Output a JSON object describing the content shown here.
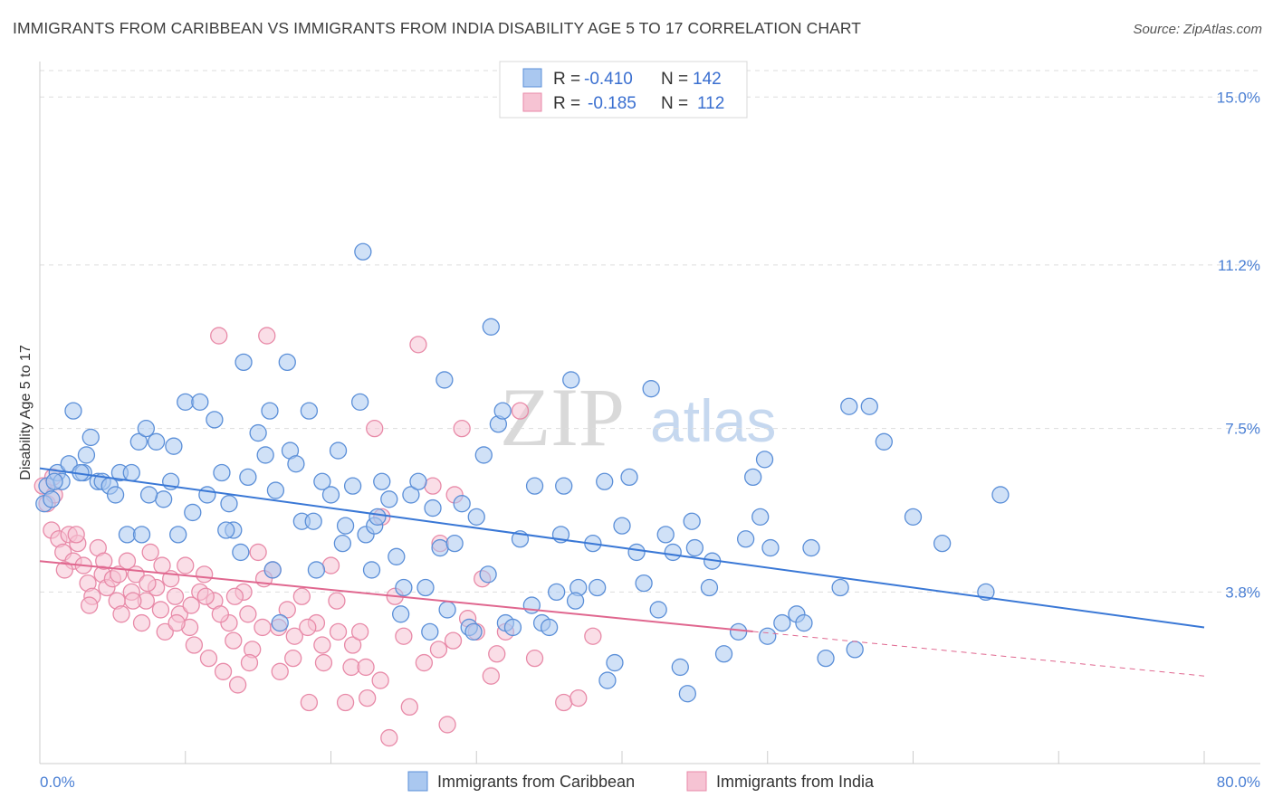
{
  "title": "IMMIGRANTS FROM CARIBBEAN VS IMMIGRANTS FROM INDIA DISABILITY AGE 5 TO 17 CORRELATION CHART",
  "source": "Source: ZipAtlas.com",
  "watermark": {
    "zip": "ZIP",
    "atlas": "atlas"
  },
  "colors": {
    "caribbean_fill": "#aac8f0",
    "caribbean_stroke": "#5b8fd8",
    "caribbean_line": "#3a78d6",
    "india_fill": "#f6c3d3",
    "india_stroke": "#e88aa8",
    "india_line": "#e0678f",
    "axis_text": "#4a7fd4",
    "grid": "#dddddd"
  },
  "legend": {
    "rows": [
      {
        "r_label": "R =",
        "r_value": "-0.410",
        "n_label": "N =",
        "n_value": "142",
        "color": "caribbean"
      },
      {
        "r_label": "R =",
        "r_value": "-0.185",
        "n_label": "N =",
        "n_value": "112",
        "color": "india"
      }
    ]
  },
  "chart_data": {
    "type": "scatter",
    "title": "IMMIGRANTS FROM CARIBBEAN VS IMMIGRANTS FROM INDIA DISABILITY AGE 5 TO 17 CORRELATION CHART",
    "xlabel": "",
    "ylabel": "Disability Age 5 to 17",
    "xlim": [
      0,
      80
    ],
    "ylim": [
      0,
      15.6
    ],
    "x_tick_labels": [
      "0.0%",
      "80.0%"
    ],
    "y_ticks": [
      3.8,
      7.5,
      11.2,
      15.0
    ],
    "y_tick_labels": [
      "3.8%",
      "7.5%",
      "11.2%",
      "15.0%"
    ],
    "grid": true,
    "legend_position": "top-center",
    "series": [
      {
        "name": "Immigrants from Caribbean",
        "R": -0.41,
        "N": 142,
        "trend": {
          "x": [
            0,
            80
          ],
          "y": [
            6.6,
            3.0
          ]
        },
        "points": [
          [
            0.3,
            5.8
          ],
          [
            0.5,
            6.2
          ],
          [
            0.8,
            5.9
          ],
          [
            1.2,
            6.5
          ],
          [
            1.5,
            6.3
          ],
          [
            2.0,
            6.7
          ],
          [
            2.3,
            7.9
          ],
          [
            3.0,
            6.5
          ],
          [
            3.2,
            6.9
          ],
          [
            3.5,
            7.3
          ],
          [
            4.0,
            6.3
          ],
          [
            4.3,
            6.3
          ],
          [
            4.8,
            6.2
          ],
          [
            5.2,
            6.0
          ],
          [
            5.5,
            6.5
          ],
          [
            6.0,
            5.1
          ],
          [
            6.3,
            6.5
          ],
          [
            6.8,
            7.2
          ],
          [
            7.0,
            5.1
          ],
          [
            7.3,
            7.5
          ],
          [
            8.0,
            7.2
          ],
          [
            8.5,
            5.9
          ],
          [
            9.0,
            6.3
          ],
          [
            9.5,
            5.1
          ],
          [
            10.0,
            8.1
          ],
          [
            10.5,
            5.6
          ],
          [
            11.0,
            8.1
          ],
          [
            11.5,
            6.0
          ],
          [
            12.0,
            7.7
          ],
          [
            12.5,
            6.5
          ],
          [
            13.0,
            5.8
          ],
          [
            13.3,
            5.2
          ],
          [
            13.8,
            4.7
          ],
          [
            14.0,
            9.0
          ],
          [
            14.3,
            6.4
          ],
          [
            15.0,
            7.4
          ],
          [
            15.5,
            6.9
          ],
          [
            15.8,
            7.9
          ],
          [
            16.0,
            4.3
          ],
          [
            16.5,
            3.1
          ],
          [
            17.0,
            9.0
          ],
          [
            17.2,
            7.0
          ],
          [
            17.6,
            6.7
          ],
          [
            18.0,
            5.4
          ],
          [
            18.5,
            7.9
          ],
          [
            19.0,
            4.3
          ],
          [
            19.4,
            6.3
          ],
          [
            20.0,
            6.0
          ],
          [
            20.5,
            7.0
          ],
          [
            21.0,
            5.3
          ],
          [
            21.5,
            6.2
          ],
          [
            22.0,
            8.1
          ],
          [
            22.4,
            5.1
          ],
          [
            23.0,
            5.3
          ],
          [
            23.5,
            6.3
          ],
          [
            24.0,
            5.9
          ],
          [
            24.5,
            4.6
          ],
          [
            25.0,
            3.9
          ],
          [
            25.5,
            6.0
          ],
          [
            26.0,
            6.3
          ],
          [
            26.5,
            3.9
          ],
          [
            27.0,
            5.7
          ],
          [
            27.5,
            4.8
          ],
          [
            28.0,
            3.4
          ],
          [
            28.5,
            4.9
          ],
          [
            29.0,
            5.8
          ],
          [
            29.5,
            3.0
          ],
          [
            30.0,
            5.5
          ],
          [
            30.5,
            6.9
          ],
          [
            31.0,
            9.8
          ],
          [
            31.5,
            7.6
          ],
          [
            32.0,
            3.1
          ],
          [
            32.5,
            3.0
          ],
          [
            33.0,
            5.0
          ],
          [
            34.0,
            6.2
          ],
          [
            34.5,
            3.1
          ],
          [
            35.0,
            3.0
          ],
          [
            35.5,
            3.8
          ],
          [
            36.0,
            6.2
          ],
          [
            36.5,
            8.6
          ],
          [
            37.0,
            3.9
          ],
          [
            38.0,
            4.9
          ],
          [
            39.0,
            1.8
          ],
          [
            40.0,
            5.3
          ],
          [
            41.0,
            4.7
          ],
          [
            41.5,
            4.0
          ],
          [
            42.5,
            3.4
          ],
          [
            43.0,
            5.1
          ],
          [
            43.5,
            4.7
          ],
          [
            44.0,
            2.1
          ],
          [
            44.5,
            1.5
          ],
          [
            45.0,
            4.8
          ],
          [
            46.0,
            3.9
          ],
          [
            47.0,
            2.4
          ],
          [
            48.0,
            2.9
          ],
          [
            48.5,
            5.0
          ],
          [
            49.0,
            6.4
          ],
          [
            49.5,
            5.5
          ],
          [
            50.0,
            2.8
          ],
          [
            51.0,
            3.1
          ],
          [
            52.0,
            3.3
          ],
          [
            53.0,
            4.8
          ],
          [
            55.0,
            3.9
          ],
          [
            56.0,
            2.5
          ],
          [
            57.0,
            8.0
          ],
          [
            58.0,
            7.2
          ],
          [
            60.0,
            5.5
          ],
          [
            62.0,
            4.9
          ],
          [
            66.0,
            6.0
          ],
          [
            65.0,
            3.8
          ],
          [
            52.5,
            3.1
          ],
          [
            54.0,
            2.3
          ],
          [
            35.8,
            5.1
          ],
          [
            38.3,
            3.9
          ],
          [
            39.5,
            2.2
          ],
          [
            40.5,
            6.4
          ],
          [
            42.0,
            8.4
          ],
          [
            22.8,
            4.3
          ],
          [
            2.8,
            6.5
          ],
          [
            1.0,
            6.3
          ],
          [
            7.5,
            6.0
          ],
          [
            9.2,
            7.1
          ],
          [
            12.8,
            5.2
          ],
          [
            16.2,
            6.1
          ],
          [
            20.8,
            4.9
          ],
          [
            26.8,
            2.9
          ],
          [
            27.8,
            8.6
          ],
          [
            30.8,
            4.2
          ],
          [
            33.8,
            3.5
          ],
          [
            36.8,
            3.6
          ],
          [
            18.8,
            5.4
          ],
          [
            22.2,
            11.5
          ],
          [
            24.8,
            3.3
          ],
          [
            29.8,
            2.9
          ],
          [
            31.8,
            7.9
          ],
          [
            38.8,
            6.3
          ],
          [
            46.2,
            4.5
          ],
          [
            50.2,
            4.8
          ],
          [
            55.6,
            8.0
          ],
          [
            49.8,
            6.8
          ],
          [
            44.8,
            5.4
          ],
          [
            23.2,
            5.5
          ]
        ]
      },
      {
        "name": "Immigrants from India",
        "R": -0.185,
        "N": 112,
        "trend": {
          "x": [
            0,
            80
          ],
          "y": [
            4.5,
            1.9
          ]
        },
        "points": [
          [
            0.2,
            6.2
          ],
          [
            0.5,
            5.8
          ],
          [
            0.8,
            5.2
          ],
          [
            1.0,
            6.0
          ],
          [
            1.3,
            5.0
          ],
          [
            1.6,
            4.7
          ],
          [
            2.0,
            5.1
          ],
          [
            2.3,
            4.5
          ],
          [
            2.6,
            4.9
          ],
          [
            3.0,
            4.4
          ],
          [
            3.3,
            4.0
          ],
          [
            3.6,
            3.7
          ],
          [
            4.0,
            4.8
          ],
          [
            4.3,
            4.2
          ],
          [
            4.6,
            3.9
          ],
          [
            5.0,
            4.1
          ],
          [
            5.3,
            3.6
          ],
          [
            5.6,
            3.3
          ],
          [
            6.0,
            4.5
          ],
          [
            6.3,
            3.8
          ],
          [
            6.6,
            4.2
          ],
          [
            7.0,
            3.1
          ],
          [
            7.3,
            3.6
          ],
          [
            7.6,
            4.7
          ],
          [
            8.0,
            3.9
          ],
          [
            8.3,
            3.4
          ],
          [
            8.6,
            2.9
          ],
          [
            9.0,
            4.1
          ],
          [
            9.3,
            3.7
          ],
          [
            9.6,
            3.3
          ],
          [
            10.0,
            4.4
          ],
          [
            10.3,
            3.0
          ],
          [
            10.6,
            2.6
          ],
          [
            11.0,
            3.8
          ],
          [
            11.3,
            4.2
          ],
          [
            11.6,
            2.3
          ],
          [
            12.0,
            3.6
          ],
          [
            12.3,
            9.6
          ],
          [
            12.6,
            2.0
          ],
          [
            13.0,
            3.1
          ],
          [
            13.3,
            2.7
          ],
          [
            13.6,
            1.7
          ],
          [
            14.0,
            3.8
          ],
          [
            14.3,
            3.3
          ],
          [
            14.6,
            2.5
          ],
          [
            15.0,
            4.7
          ],
          [
            15.3,
            3.0
          ],
          [
            15.6,
            9.6
          ],
          [
            16.0,
            4.3
          ],
          [
            16.5,
            2.0
          ],
          [
            17.0,
            3.4
          ],
          [
            17.5,
            2.8
          ],
          [
            18.0,
            3.7
          ],
          [
            18.5,
            1.3
          ],
          [
            19.0,
            3.1
          ],
          [
            19.5,
            2.2
          ],
          [
            20.0,
            4.4
          ],
          [
            20.5,
            2.9
          ],
          [
            21.0,
            1.3
          ],
          [
            21.5,
            2.6
          ],
          [
            22.0,
            2.9
          ],
          [
            22.5,
            1.4
          ],
          [
            23.0,
            7.5
          ],
          [
            23.5,
            5.5
          ],
          [
            24.0,
            0.5
          ],
          [
            25.0,
            2.8
          ],
          [
            26.0,
            9.4
          ],
          [
            27.0,
            6.2
          ],
          [
            27.5,
            4.9
          ],
          [
            28.0,
            0.8
          ],
          [
            28.5,
            6.0
          ],
          [
            29.0,
            7.5
          ],
          [
            30.0,
            2.9
          ],
          [
            31.0,
            1.9
          ],
          [
            32.0,
            2.9
          ],
          [
            33.0,
            7.9
          ],
          [
            34.0,
            2.3
          ],
          [
            36.0,
            1.3
          ],
          [
            37.0,
            1.4
          ],
          [
            38.0,
            2.8
          ],
          [
            0.9,
            6.4
          ],
          [
            1.7,
            4.3
          ],
          [
            2.5,
            5.1
          ],
          [
            3.4,
            3.5
          ],
          [
            4.4,
            4.5
          ],
          [
            5.4,
            4.2
          ],
          [
            6.4,
            3.6
          ],
          [
            7.4,
            4.0
          ],
          [
            8.4,
            4.4
          ],
          [
            9.4,
            3.1
          ],
          [
            10.4,
            3.5
          ],
          [
            11.4,
            3.7
          ],
          [
            12.4,
            3.3
          ],
          [
            13.4,
            3.7
          ],
          [
            14.4,
            2.2
          ],
          [
            15.4,
            4.1
          ],
          [
            16.4,
            3.0
          ],
          [
            17.4,
            2.3
          ],
          [
            18.4,
            3.0
          ],
          [
            19.4,
            2.6
          ],
          [
            20.4,
            3.6
          ],
          [
            21.4,
            2.1
          ],
          [
            22.4,
            2.1
          ],
          [
            23.4,
            1.8
          ],
          [
            24.4,
            3.7
          ],
          [
            25.4,
            1.2
          ],
          [
            26.4,
            2.2
          ],
          [
            27.4,
            2.5
          ],
          [
            28.4,
            2.7
          ],
          [
            29.4,
            3.2
          ],
          [
            30.4,
            4.1
          ],
          [
            31.4,
            2.4
          ]
        ]
      }
    ]
  },
  "bottom_legend": {
    "items": [
      {
        "label": "Immigrants from Caribbean",
        "color": "caribbean"
      },
      {
        "label": "Immigrants from India",
        "color": "india"
      }
    ]
  }
}
